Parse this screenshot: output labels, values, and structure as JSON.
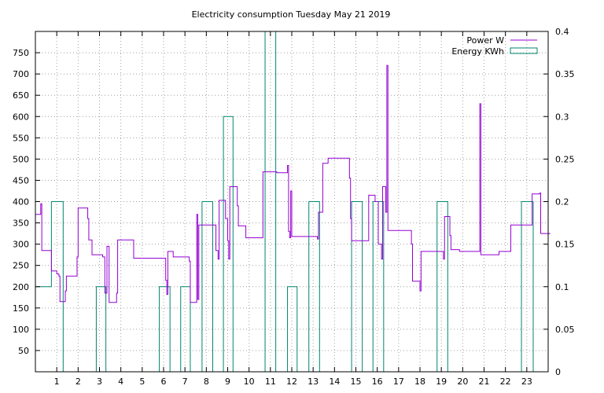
{
  "chart_data": {
    "type": "line",
    "title": "Electricity consumption Tuesday May 21 2019",
    "grid": true,
    "legend_position": "top-right",
    "x_axis": {
      "range": [
        0,
        24
      ],
      "ticks": [
        1,
        2,
        3,
        4,
        5,
        6,
        7,
        8,
        9,
        10,
        11,
        12,
        13,
        14,
        15,
        16,
        17,
        18,
        19,
        20,
        21,
        22,
        23
      ]
    },
    "y_axis_left": {
      "range": [
        0,
        800
      ],
      "ticks": [
        50,
        100,
        150,
        200,
        250,
        300,
        350,
        400,
        450,
        500,
        550,
        600,
        650,
        700,
        750
      ]
    },
    "y_axis_right": {
      "range": [
        0,
        0.4
      ],
      "ticks": [
        0,
        0.05,
        0.1,
        0.15,
        0.2,
        0.25,
        0.3,
        0.35,
        0.4
      ]
    },
    "series": [
      {
        "name": "Power W",
        "axis": "left",
        "color": "#9400d3",
        "step": true,
        "points": [
          [
            0,
            370
          ],
          [
            0.25,
            395
          ],
          [
            0.3,
            285
          ],
          [
            0.75,
            285
          ],
          [
            0.75,
            237
          ],
          [
            1.0,
            230
          ],
          [
            1.1,
            225
          ],
          [
            1.15,
            165
          ],
          [
            1.4,
            190
          ],
          [
            1.45,
            225
          ],
          [
            1.95,
            270
          ],
          [
            2.0,
            385
          ],
          [
            2.45,
            360
          ],
          [
            2.5,
            310
          ],
          [
            2.65,
            275
          ],
          [
            3.15,
            270
          ],
          [
            3.25,
            185
          ],
          [
            3.35,
            295
          ],
          [
            3.45,
            163
          ],
          [
            3.6,
            163
          ],
          [
            3.8,
            185
          ],
          [
            3.85,
            310
          ],
          [
            4.6,
            267
          ],
          [
            6.1,
            215
          ],
          [
            6.15,
            182
          ],
          [
            6.2,
            283
          ],
          [
            6.45,
            270
          ],
          [
            7.2,
            260
          ],
          [
            7.25,
            163
          ],
          [
            7.55,
            370
          ],
          [
            7.6,
            170
          ],
          [
            7.65,
            345
          ],
          [
            8.45,
            285
          ],
          [
            8.55,
            265
          ],
          [
            8.6,
            403
          ],
          [
            8.9,
            360
          ],
          [
            9.0,
            308
          ],
          [
            9.05,
            265
          ],
          [
            9.1,
            435
          ],
          [
            9.45,
            390
          ],
          [
            9.5,
            343
          ],
          [
            9.85,
            315
          ],
          [
            10.65,
            470
          ],
          [
            11.2,
            470
          ],
          [
            11.3,
            468
          ],
          [
            11.8,
            485
          ],
          [
            11.85,
            330
          ],
          [
            11.9,
            315
          ],
          [
            11.95,
            425
          ],
          [
            12.0,
            318
          ],
          [
            13.2,
            312
          ],
          [
            13.25,
            375
          ],
          [
            13.45,
            490
          ],
          [
            13.7,
            502
          ],
          [
            14.7,
            455
          ],
          [
            14.75,
            360
          ],
          [
            14.8,
            308
          ],
          [
            15.6,
            415
          ],
          [
            15.9,
            400
          ],
          [
            16.05,
            300
          ],
          [
            16.2,
            265
          ],
          [
            16.25,
            435
          ],
          [
            16.4,
            375
          ],
          [
            16.45,
            720
          ],
          [
            16.5,
            332
          ],
          [
            17.6,
            300
          ],
          [
            17.65,
            213
          ],
          [
            18.0,
            190
          ],
          [
            18.05,
            283
          ],
          [
            19.1,
            265
          ],
          [
            19.15,
            365
          ],
          [
            19.4,
            320
          ],
          [
            19.45,
            287
          ],
          [
            19.85,
            283
          ],
          [
            20.8,
            630
          ],
          [
            20.85,
            275
          ],
          [
            21.7,
            283
          ],
          [
            22.25,
            345
          ],
          [
            23.2,
            345
          ],
          [
            23.25,
            418
          ],
          [
            23.6,
            420
          ],
          [
            23.65,
            325
          ],
          [
            24.1,
            325
          ]
        ]
      },
      {
        "name": "Energy KWh",
        "axis": "right",
        "color": "#00876e",
        "step": true,
        "points": [
          [
            0,
            0.1
          ],
          [
            0.75,
            0.2
          ],
          [
            1.3,
            0
          ],
          [
            2.85,
            0.1
          ],
          [
            3.3,
            0
          ],
          [
            5.8,
            0.1
          ],
          [
            6.3,
            0
          ],
          [
            6.8,
            0.1
          ],
          [
            7.25,
            0
          ],
          [
            7.8,
            0.2
          ],
          [
            8.3,
            0
          ],
          [
            8.8,
            0.3
          ],
          [
            9.25,
            0
          ],
          [
            10.75,
            0.4
          ],
          [
            11.25,
            0
          ],
          [
            11.8,
            0.1
          ],
          [
            12.25,
            0
          ],
          [
            12.8,
            0.2
          ],
          [
            13.3,
            0
          ],
          [
            14.8,
            0.2
          ],
          [
            15.3,
            0
          ],
          [
            15.8,
            0.2
          ],
          [
            16.3,
            0
          ],
          [
            18.8,
            0.2
          ],
          [
            19.3,
            0
          ],
          [
            22.75,
            0.2
          ],
          [
            23.3,
            0
          ]
        ]
      }
    ]
  }
}
